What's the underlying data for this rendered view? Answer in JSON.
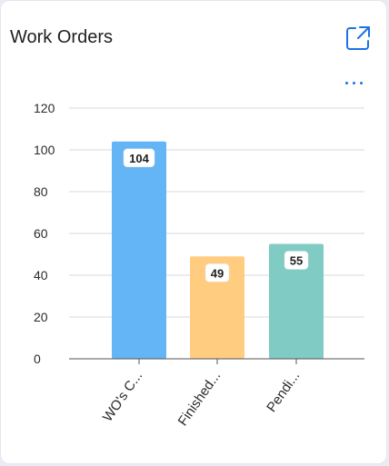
{
  "header": {
    "title": "Work Orders",
    "open_icon": "external-link-icon",
    "more_icon": "more-horizontal-icon",
    "accent_color": "#1a73e8"
  },
  "chart_data": {
    "type": "bar",
    "title": "",
    "xlabel": "",
    "ylabel": "",
    "categories": [
      "WO's C...",
      "Finished...",
      "Pendi..."
    ],
    "values": [
      104,
      49,
      55
    ],
    "colors": [
      "#64b5f6",
      "#ffcc80",
      "#80cbc4"
    ],
    "yticks": [
      0,
      20,
      40,
      60,
      80,
      100,
      120
    ],
    "ylim": [
      0,
      120
    ],
    "grid": true,
    "legend": "none"
  }
}
